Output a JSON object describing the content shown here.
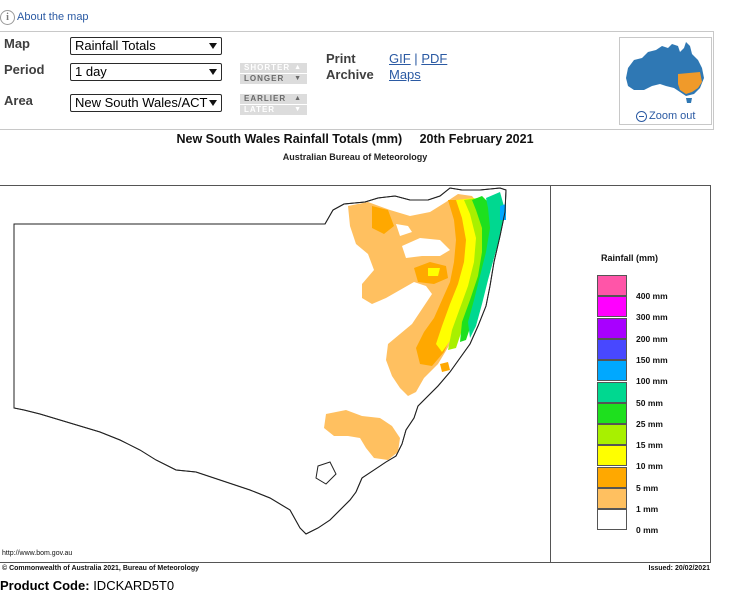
{
  "header": {
    "about_link": "About the map"
  },
  "controls": {
    "map_label": "Map",
    "map_value": "Rainfall Totals",
    "period_label": "Period",
    "period_value": "1 day",
    "area_label": "Area",
    "area_value": "New South Wales/ACT",
    "shorter": "SHORTER",
    "longer": "LONGER",
    "earlier": "EARLIER",
    "later": "LATER"
  },
  "print_archive": {
    "print": "Print",
    "archive": "Archive",
    "gif": "GIF",
    "separator": "|",
    "pdf": "PDF",
    "maps": "Maps"
  },
  "minimap": {
    "zoom_out": "Zoom out"
  },
  "map": {
    "title": "New South Wales Rainfall Totals (mm)     20th February 2021",
    "subtitle": "Australian Bureau of Meteorology",
    "url": "http://www.bom.gov.au",
    "copyright": "© Commonwealth of Australia 2021, Bureau of Meteorology",
    "issued": "Issued: 20/02/2021"
  },
  "legend": {
    "title": "Rainfall (mm)",
    "items": [
      {
        "label": "400 mm",
        "color": "#ff55a8"
      },
      {
        "label": "300 mm",
        "color": "#ff00ff"
      },
      {
        "label": "200 mm",
        "color": "#a800ff"
      },
      {
        "label": "150 mm",
        "color": "#4848ff"
      },
      {
        "label": "100 mm",
        "color": "#00a8ff"
      },
      {
        "label": "50 mm",
        "color": "#00d890"
      },
      {
        "label": "25 mm",
        "color": "#1ee01e"
      },
      {
        "label": "15 mm",
        "color": "#a8f000"
      },
      {
        "label": "10 mm",
        "color": "#ffff00"
      },
      {
        "label": "5 mm",
        "color": "#ffa800"
      },
      {
        "label": "1 mm",
        "color": "#ffc060"
      },
      {
        "label": "0 mm",
        "color": "#ffffff"
      }
    ]
  },
  "footer": {
    "product_code_label": "Product Code:",
    "product_code": "IDCKARD5T0"
  }
}
